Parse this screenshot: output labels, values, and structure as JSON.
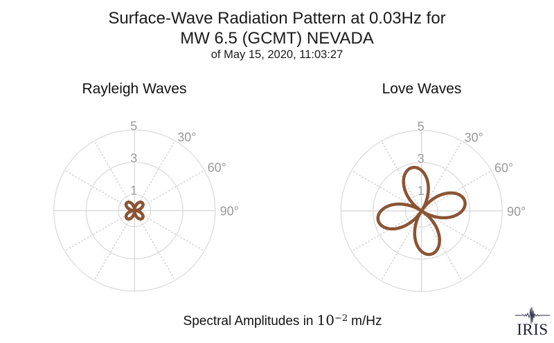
{
  "header": {
    "title_line1": "Surface-Wave Radiation Pattern at 0.03Hz for",
    "title_line2": "MW 6.5 (GCMT) NEVADA",
    "subtitle": "of May 15, 2020, 11:03:27"
  },
  "caption": {
    "prefix": "Spectral Amplitudes in",
    "base": "10",
    "exponent": "−2",
    "suffix": "m/Hz"
  },
  "logo": {
    "text": "IRIS"
  },
  "colors": {
    "pattern": "#8a5433",
    "grid_circle": "#d9d9d9",
    "axis_line": "#d2d2d2",
    "grid_dotted": "#c9c9c9",
    "tick_label": "#989898",
    "title": "#1a1a1a",
    "logo": "#20203f"
  },
  "chart_data": [
    {
      "type": "polar-rose",
      "title": "Rayleigh Waves",
      "r_ticks": [
        1,
        3,
        5
      ],
      "r_axis_max": 5,
      "theta_tick_labels": [
        "30°",
        "60°",
        "90°"
      ],
      "theta_tick_angles_deg": [
        30,
        60,
        90
      ],
      "grid": {
        "solid_spoke_angles_deg": [
          0,
          90,
          180,
          270
        ],
        "dotted_spoke_angles_deg": [
          30,
          60,
          120,
          150,
          210,
          240,
          300,
          330
        ]
      },
      "pattern": {
        "name": "rayleigh-radiation-pattern",
        "model": "r = A·|cos(2(θ−φ))|",
        "amplitude": 0.68,
        "rotation_deg": 45,
        "n_lobes": 4,
        "petal_azimuths_deg": [
          45,
          135,
          225,
          315
        ]
      }
    },
    {
      "type": "polar-rose",
      "title": "Love Waves",
      "r_ticks": [
        1,
        3,
        5
      ],
      "r_axis_max": 5,
      "theta_tick_labels": [
        "30°",
        "60°",
        "90°"
      ],
      "theta_tick_angles_deg": [
        30,
        60,
        90
      ],
      "grid": {
        "solid_spoke_angles_deg": [
          0,
          90,
          180,
          270
        ],
        "dotted_spoke_angles_deg": [
          30,
          60,
          120,
          150,
          210,
          240,
          300,
          330
        ]
      },
      "pattern": {
        "name": "love-radiation-pattern",
        "model": "r = A·|cos(2(θ−φ))|",
        "amplitude": 2.75,
        "rotation_deg": -12,
        "n_lobes": 4,
        "petal_azimuths_deg": [
          -12,
          78,
          168,
          258
        ]
      }
    }
  ]
}
